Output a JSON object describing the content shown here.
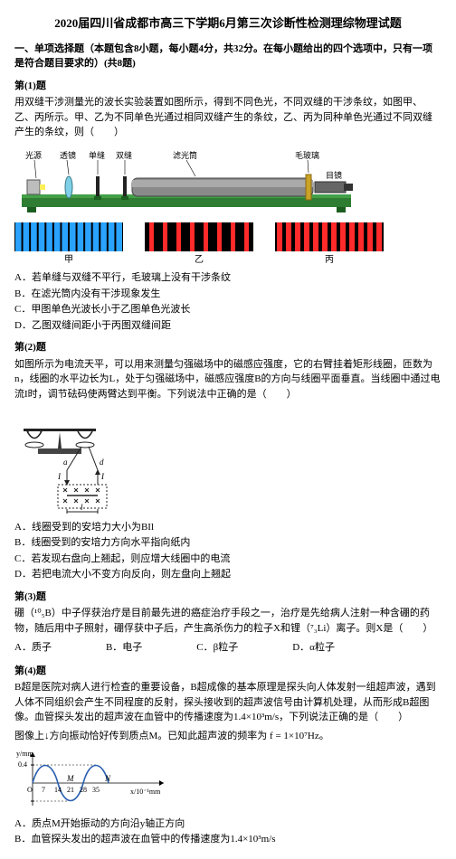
{
  "title": "2020届四川省成都市高三下学期6月第三次诊断性检测理综物理试题",
  "section_heading": "一、单项选择题（本题包含8小题，每小题4分，共32分。在每小题给出的四个选项中，只有一项是符合题目要求的）(共8题)",
  "q1": {
    "heading": "第(1)题",
    "text": "用双缝干涉测量光的波长实验装置如图所示，得到不同色光，不同双缝的干涉条纹，如图甲、乙、丙所示。甲、乙为不同单色光通过相同双缝产生的条纹，乙、丙为同种单色光通过不同双缝产生的条纹，则（　　）",
    "labels": {
      "light": "光源",
      "lens": "透镜",
      "single": "单缝",
      "double": "双缝",
      "filter": "滤光筒",
      "glass": "毛玻璃",
      "eyepiece": "目镜"
    },
    "fringes": {
      "bg": "#000000",
      "jia": {
        "label": "甲",
        "color": "#2aa3ff",
        "count": 14,
        "gap": 2
      },
      "yi": {
        "label": "乙",
        "color": "#ff2a2a",
        "count": 8,
        "gap": 10
      },
      "bing": {
        "label": "丙",
        "color": "#ff2a2a",
        "count": 12,
        "gap": 4
      }
    },
    "opts": {
      "A": "A．若单缝与双缝不平行，毛玻璃上没有干涉条纹",
      "B": "B．在滤光筒内没有干涉现象发生",
      "C": "C．甲图单色光波长小于乙图单色光波长",
      "D": "D．乙图双缝间距小于丙图双缝间距"
    },
    "apparatus_colors": {
      "tube_dark": "#5a5a5a",
      "tube_mid": "#888888",
      "base_green": "#2e7d32",
      "base_mid": "#43a047",
      "lens": "#7fcfe6",
      "gold": "#c9a227"
    }
  },
  "q2": {
    "heading": "第(2)题",
    "text": "如图所示为电流天平，可以用来测量匀强磁场中的磁感应强度，它的右臂挂着矩形线圈，匝数为n，线圈的水平边长为L，处于匀强磁场中，磁感应强度B的方向与线圈平面垂直。当线圈中通过电流I时，调节砝码使两臂达到平衡。下列说法中正确的是（　　）",
    "opts": {
      "A": "A．线圈受到的安培力大小为BIl",
      "B": "B．线圈受到的安培力方向水平指向纸内",
      "C": "C．若发现右盘向上翘起，则应增大线圈中的电流",
      "D": "D．若把电流大小不变方向反向，则左盘向上翘起"
    },
    "fig_colors": {
      "line": "#333333",
      "coil": "#222222",
      "field": "#000000"
    },
    "fig_labels": {
      "a": "a",
      "d": "d",
      "I": "I",
      "l": "l"
    }
  },
  "q3": {
    "heading": "第(3)题",
    "text": "硼（¹⁰₅B）中子俘获治疗是目前最先进的癌症治疗手段之一，治疗是先给病人注射一种含硼的药物，随后用中子照射，硼俘获中子后，产生高杀伤力的粒子X和锂（⁷₃Li）离子。则X是（　　）",
    "opts": {
      "A": "A．质子",
      "B": "B．电子",
      "C": "C．β粒子",
      "D": "D．α粒子"
    }
  },
  "q4": {
    "heading": "第(4)题",
    "text": "B超是医院对病人进行检查的重要设备，B超成像的基本原理是探头向人体发射一组超声波，遇到人体不同组织会产生不同程度的反射，探头接收到的超声波信号由计算机处理，从而形成B超图像。血管探头发出的超声波在血管中的传播速度为1.4×10³m/s，下列说法正确的是（　　）",
    "text2": "图像上↓方向振动恰好传到质点M。已知此超声波的频率为 f = 1×10⁷Hz。",
    "opts": {
      "A": "A．质点M开始振动的方向沿y轴正方向",
      "B": "B．血管探头发出的超声波在血管中的传播速度为1.4×10³m/s"
    },
    "wave": {
      "amp_label": "y/mm",
      "x_label": "x/10⁻¹mm",
      "amp": 0.4,
      "ticks_x": [
        7,
        14,
        21,
        28,
        35
      ],
      "M": "M",
      "N": "N",
      "line_color": "#2a5fb0",
      "axis_color": "#000000"
    }
  }
}
